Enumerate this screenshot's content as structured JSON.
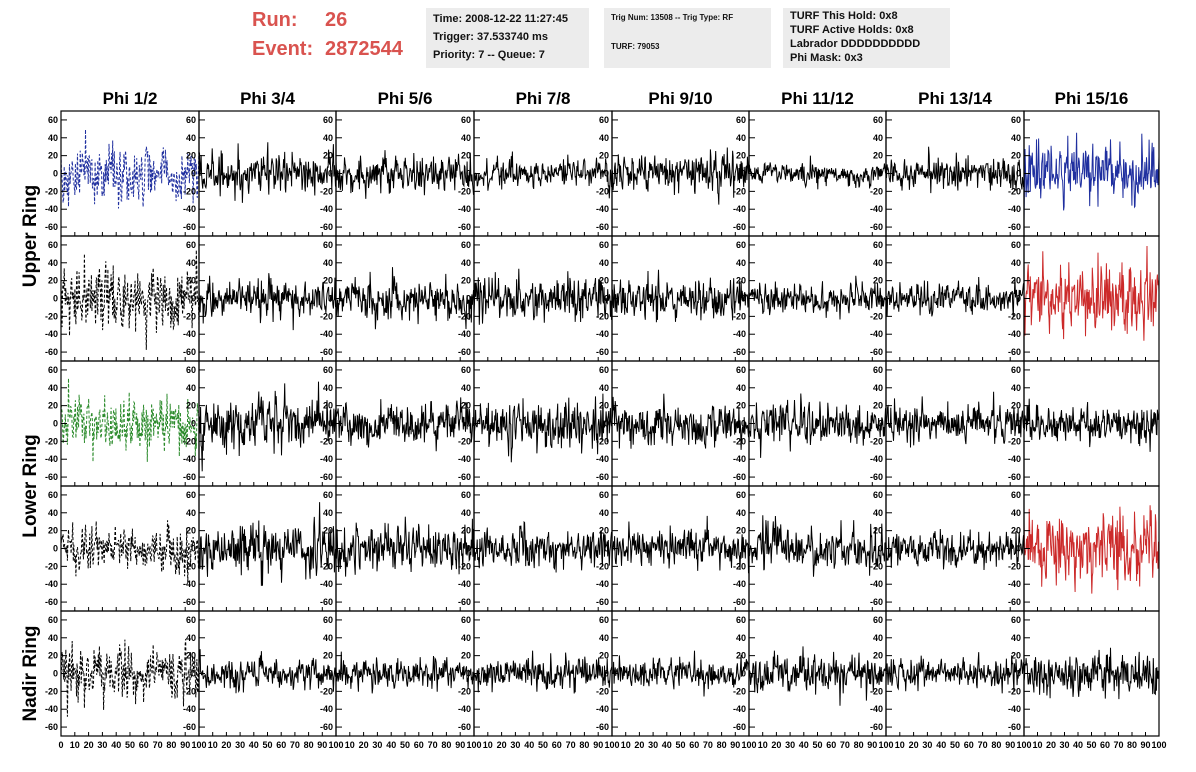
{
  "header": {
    "run_label": "Run:",
    "run_value": "26",
    "event_label": "Event:",
    "event_value": "2872544",
    "accent_color": "#d9534f"
  },
  "info_box_1": {
    "time": "Time: 2008-12-22 11:27:45",
    "trigger": "Trigger: 37.533740 ms",
    "priority": "Priority: 7 -- Queue: 7"
  },
  "info_box_2": {
    "trig": "Trig Num: 13508 -- Trig Type: RF",
    "turf": "TURF: 79053"
  },
  "info_box_3": {
    "hold": "TURF This Hold: 0x8",
    "active": "TURF Active Holds: 0x8",
    "labrador": "Labrador DDDDDDDDDD",
    "phimask": "Phi Mask: 0x3"
  },
  "chart_data": {
    "type": "line",
    "column_titles": [
      "Phi 1/2",
      "Phi 3/4",
      "Phi 5/6",
      "Phi 7/8",
      "Phi 9/10",
      "Phi 11/12",
      "Phi 13/14",
      "Phi 15/16"
    ],
    "row_labels": [
      "Upper Ring",
      "Lower Ring",
      "Nadir Ring"
    ],
    "rows_per_group": [
      2,
      2,
      1
    ],
    "ylim": [
      -70,
      70
    ],
    "xlim": [
      0,
      100
    ],
    "y_ticks": [
      -60,
      -40,
      -20,
      0,
      20,
      40,
      60
    ],
    "y_tick_labels": [
      "-60",
      "-40",
      "-20",
      "0",
      "20",
      "40",
      "60"
    ],
    "x_ticks": [
      0,
      10,
      20,
      30,
      40,
      50,
      60,
      70,
      80,
      90,
      100
    ],
    "x_tick_labels_first": [
      "0",
      "10",
      "20",
      "30",
      "40",
      "50",
      "60",
      "70",
      "80",
      "90",
      "100"
    ],
    "x_tick_labels_other": [
      "10",
      "20",
      "30",
      "40",
      "50",
      "60",
      "70",
      "80",
      "90",
      "100"
    ],
    "n_samples": 260,
    "panels": [
      [
        {
          "color": "#1f2f9f",
          "dashed": true,
          "amp": 19
        },
        {
          "color": "#000000",
          "dashed": false,
          "amp": 13
        },
        {
          "color": "#000000",
          "dashed": false,
          "amp": 11
        },
        {
          "color": "#000000",
          "dashed": false,
          "amp": 10
        },
        {
          "color": "#000000",
          "dashed": false,
          "amp": 13
        },
        {
          "color": "#000000",
          "dashed": false,
          "amp": 7
        },
        {
          "color": "#000000",
          "dashed": false,
          "amp": 10
        },
        {
          "color": "#1f2f9f",
          "dashed": false,
          "amp": 19
        }
      ],
      [
        {
          "color": "#000000",
          "dashed": true,
          "amp": 22
        },
        {
          "color": "#000000",
          "dashed": false,
          "amp": 12
        },
        {
          "color": "#000000",
          "dashed": false,
          "amp": 13
        },
        {
          "color": "#000000",
          "dashed": false,
          "amp": 13
        },
        {
          "color": "#000000",
          "dashed": false,
          "amp": 12
        },
        {
          "color": "#000000",
          "dashed": false,
          "amp": 10
        },
        {
          "color": "#000000",
          "dashed": false,
          "amp": 10
        },
        {
          "color": "#cc2a2a",
          "dashed": false,
          "amp": 21
        }
      ],
      [
        {
          "color": "#2a8a2a",
          "dashed": true,
          "amp": 17
        },
        {
          "color": "#000000",
          "dashed": false,
          "amp": 17
        },
        {
          "color": "#000000",
          "dashed": false,
          "amp": 14
        },
        {
          "color": "#000000",
          "dashed": false,
          "amp": 16
        },
        {
          "color": "#000000",
          "dashed": false,
          "amp": 13
        },
        {
          "color": "#000000",
          "dashed": false,
          "amp": 13
        },
        {
          "color": "#000000",
          "dashed": false,
          "amp": 12
        },
        {
          "color": "#000000",
          "dashed": false,
          "amp": 12
        }
      ],
      [
        {
          "color": "#000000",
          "dashed": true,
          "amp": 15
        },
        {
          "color": "#000000",
          "dashed": false,
          "amp": 17
        },
        {
          "color": "#000000",
          "dashed": false,
          "amp": 16
        },
        {
          "color": "#000000",
          "dashed": false,
          "amp": 13
        },
        {
          "color": "#000000",
          "dashed": false,
          "amp": 12
        },
        {
          "color": "#000000",
          "dashed": false,
          "amp": 14
        },
        {
          "color": "#000000",
          "dashed": false,
          "amp": 11
        },
        {
          "color": "#cc2a2a",
          "dashed": false,
          "amp": 21
        }
      ],
      [
        {
          "color": "#000000",
          "dashed": true,
          "amp": 18
        },
        {
          "color": "#000000",
          "dashed": false,
          "amp": 10
        },
        {
          "color": "#000000",
          "dashed": false,
          "amp": 10
        },
        {
          "color": "#000000",
          "dashed": false,
          "amp": 10
        },
        {
          "color": "#000000",
          "dashed": false,
          "amp": 9
        },
        {
          "color": "#000000",
          "dashed": false,
          "amp": 11
        },
        {
          "color": "#000000",
          "dashed": false,
          "amp": 10
        },
        {
          "color": "#000000",
          "dashed": false,
          "amp": 13
        }
      ]
    ]
  }
}
